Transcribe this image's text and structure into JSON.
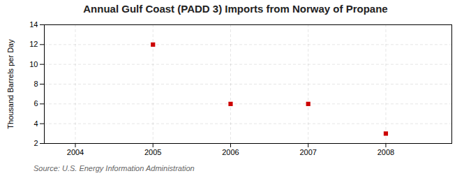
{
  "chart_data": {
    "type": "scatter",
    "title": "Annual Gulf Coast (PADD 3) Imports from Norway of Propane",
    "ylabel": "Thousand Barrels per Day",
    "annotations": [
      "Source: U.S. Energy Information Administration"
    ],
    "x": [
      2005,
      2006,
      2007,
      2008
    ],
    "values": [
      12,
      6,
      6,
      3
    ],
    "color": "#cc0000",
    "marker": "square",
    "xlim": [
      2003.6,
      2008.85
    ],
    "ylim": [
      2,
      14
    ],
    "xticks": [
      2004,
      2005,
      2006,
      2007,
      2008
    ],
    "yticks": [
      2,
      4,
      6,
      8,
      10,
      12,
      14
    ],
    "grid": true
  }
}
